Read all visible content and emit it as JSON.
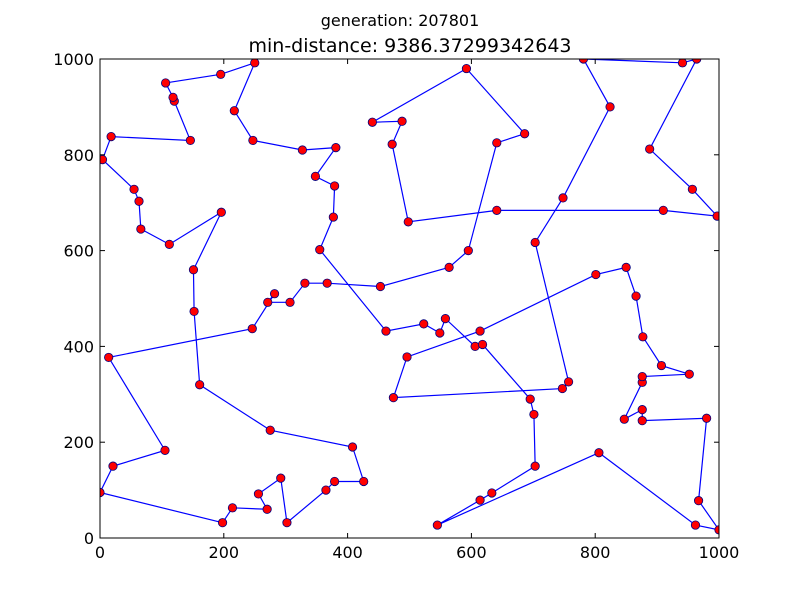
{
  "chart_data": {
    "type": "line",
    "subtitle": "generation: 207801",
    "title": "min-distance: 9386.37299342643",
    "xlim": [
      0,
      1000
    ],
    "ylim": [
      0,
      1000
    ],
    "x_ticks": [
      0,
      200,
      400,
      600,
      800,
      1000
    ],
    "y_ticks": [
      0,
      200,
      400,
      600,
      800,
      1000
    ],
    "x_tick_labels": [
      "0",
      "200",
      "400",
      "600",
      "800",
      "1000"
    ],
    "y_tick_labels": [
      "0",
      "200",
      "400",
      "600",
      "800",
      "1000"
    ],
    "grid": false,
    "colors": {
      "line": "#0000ff",
      "marker_fill": "#ff0000",
      "marker_edge": "#00007f"
    },
    "points": [
      [
        0,
        95
      ],
      [
        198,
        32
      ],
      [
        214,
        63
      ],
      [
        270,
        60
      ],
      [
        256,
        92
      ],
      [
        292,
        125
      ],
      [
        302,
        32
      ],
      [
        365,
        100
      ],
      [
        379,
        118
      ],
      [
        426,
        118
      ],
      [
        408,
        190
      ],
      [
        275,
        225
      ],
      [
        161,
        320
      ],
      [
        152,
        473
      ],
      [
        151,
        560
      ],
      [
        196,
        680
      ],
      [
        112,
        613
      ],
      [
        66,
        645
      ],
      [
        63,
        703
      ],
      [
        55,
        728
      ],
      [
        4,
        790
      ],
      [
        18,
        838
      ],
      [
        146,
        830
      ],
      [
        120,
        912
      ],
      [
        118,
        920
      ],
      [
        106,
        950
      ],
      [
        195,
        968
      ],
      [
        250,
        992
      ],
      [
        217,
        892
      ],
      [
        247,
        830
      ],
      [
        327,
        810
      ],
      [
        381,
        815
      ],
      [
        348,
        755
      ],
      [
        379,
        735
      ],
      [
        377,
        670
      ],
      [
        355,
        602
      ],
      [
        462,
        432
      ],
      [
        523,
        447
      ],
      [
        549,
        428
      ],
      [
        558,
        458
      ],
      [
        606,
        400
      ],
      [
        618,
        404
      ],
      [
        695,
        290
      ],
      [
        701,
        258
      ],
      [
        703,
        150
      ],
      [
        633,
        94
      ],
      [
        614,
        79
      ],
      [
        545,
        27
      ],
      [
        806,
        178
      ],
      [
        962,
        27
      ],
      [
        1000,
        17
      ],
      [
        967,
        78
      ],
      [
        980,
        250
      ],
      [
        876,
        245
      ],
      [
        876,
        268
      ],
      [
        847,
        248
      ],
      [
        876,
        325
      ],
      [
        876,
        337
      ],
      [
        952,
        342
      ],
      [
        907,
        360
      ],
      [
        877,
        420
      ],
      [
        866,
        505
      ],
      [
        850,
        565
      ],
      [
        801,
        550
      ],
      [
        614,
        432
      ],
      [
        496,
        378
      ],
      [
        474,
        293
      ],
      [
        747,
        312
      ],
      [
        757,
        326
      ],
      [
        703,
        617
      ],
      [
        748,
        710
      ],
      [
        824,
        900
      ],
      [
        781,
        1000
      ],
      [
        941,
        992
      ],
      [
        964,
        1000
      ],
      [
        888,
        812
      ],
      [
        957,
        728
      ],
      [
        997,
        672
      ],
      [
        910,
        684
      ],
      [
        641,
        684
      ],
      [
        498,
        660
      ],
      [
        472,
        822
      ],
      [
        488,
        870
      ],
      [
        440,
        868
      ],
      [
        592,
        980
      ],
      [
        686,
        844
      ],
      [
        641,
        825
      ],
      [
        595,
        600
      ],
      [
        564,
        565
      ],
      [
        453,
        525
      ],
      [
        367,
        532
      ],
      [
        331,
        532
      ],
      [
        307,
        492
      ],
      [
        271,
        492
      ],
      [
        282,
        510
      ],
      [
        246,
        437
      ],
      [
        14,
        377
      ],
      [
        105,
        183
      ],
      [
        21,
        150
      ],
      [
        0,
        95
      ]
    ]
  }
}
